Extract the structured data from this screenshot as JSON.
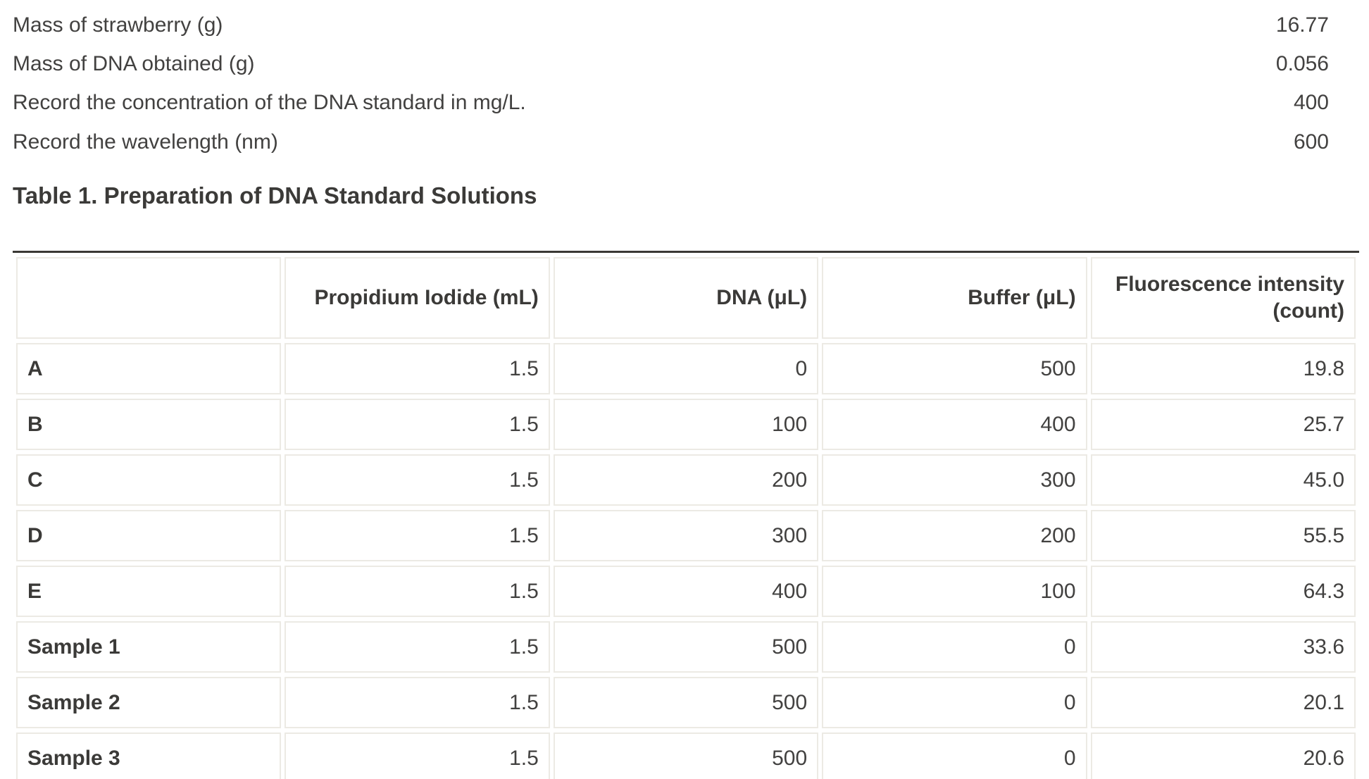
{
  "colors": {
    "bg": "#ffffff",
    "text": "#424140",
    "heading": "#3b3a38",
    "rule": "#3a3834",
    "cell-border": "#eceae4"
  },
  "fields": [
    {
      "label": "Mass of strawberry (g)",
      "value": "16.77"
    },
    {
      "label": "Mass of DNA obtained (g)",
      "value": "0.056"
    },
    {
      "label": "Record the concentration of the DNA standard in mg/L.",
      "value": "400"
    },
    {
      "label": "Record the wavelength (nm)",
      "value": "600"
    }
  ],
  "table": {
    "title": "Table 1. Preparation of DNA Standard Solutions",
    "columns": [
      "",
      "Propidium Iodide (mL)",
      "DNA (μL)",
      "Buffer (μL)",
      "Fluorescence intensity (count)"
    ],
    "rows": [
      {
        "label": "A",
        "values": [
          "1.5",
          "0",
          "500",
          "19.8"
        ]
      },
      {
        "label": "B",
        "values": [
          "1.5",
          "100",
          "400",
          "25.7"
        ]
      },
      {
        "label": "C",
        "values": [
          "1.5",
          "200",
          "300",
          "45.0"
        ]
      },
      {
        "label": "D",
        "values": [
          "1.5",
          "300",
          "200",
          "55.5"
        ]
      },
      {
        "label": "E",
        "values": [
          "1.5",
          "400",
          "100",
          "64.3"
        ]
      },
      {
        "label": "Sample 1",
        "values": [
          "1.5",
          "500",
          "0",
          "33.6"
        ]
      },
      {
        "label": "Sample 2",
        "values": [
          "1.5",
          "500",
          "0",
          "20.1"
        ]
      },
      {
        "label": "Sample 3",
        "values": [
          "1.5",
          "500",
          "0",
          "20.6"
        ]
      }
    ]
  }
}
